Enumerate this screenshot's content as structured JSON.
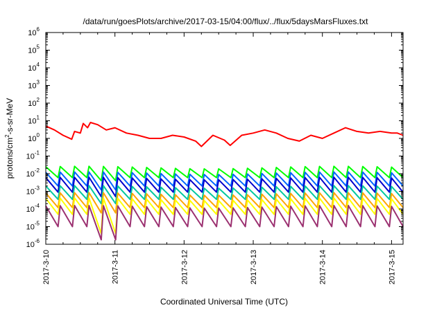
{
  "chart_data": {
    "type": "line",
    "title": "/data/run/goesPlots/archive/2017-03-15/04:00/flux/../flux/5daysMarsFluxes.txt",
    "xlabel": "Coordinated Universal Time (UTC)",
    "ylabel": {
      "pre": "protons/cm",
      "sup": "2",
      "post": "-s-sr-MeV"
    },
    "yscale": "log",
    "ylim_exp": [
      -6,
      6
    ],
    "y_ticks": [
      {
        "base": "10",
        "exp": "-6"
      },
      {
        "base": "10",
        "exp": "-5"
      },
      {
        "base": "10",
        "exp": "-4"
      },
      {
        "base": "10",
        "exp": "-3"
      },
      {
        "base": "10",
        "exp": "-2"
      },
      {
        "base": "10",
        "exp": "-1"
      },
      {
        "base": "10",
        "exp": "0"
      },
      {
        "base": "10",
        "exp": "1"
      },
      {
        "base": "10",
        "exp": "2"
      },
      {
        "base": "10",
        "exp": "3"
      },
      {
        "base": "10",
        "exp": "4"
      },
      {
        "base": "10",
        "exp": "5"
      },
      {
        "base": "10",
        "exp": "6"
      }
    ],
    "xlim": [
      "2017-03-10 00:00",
      "2017-03-15 04:00"
    ],
    "x_ticks": [
      "2017-3-10",
      "2017-3-11",
      "2017-3-12",
      "2017-3-13",
      "2017-3-14",
      "2017-3-15"
    ],
    "grid": false,
    "legend": false,
    "series": [
      {
        "color": "#ff0000",
        "values": [
          [
            "2017-03-10 00:00",
            5.0
          ],
          [
            "2017-03-10 03:00",
            3.0
          ],
          [
            "2017-03-10 06:00",
            1.5
          ],
          [
            "2017-03-10 09:00",
            0.9
          ],
          [
            "2017-03-10 10:00",
            2.5
          ],
          [
            "2017-03-10 12:00",
            2.0
          ],
          [
            "2017-03-10 13:00",
            7.0
          ],
          [
            "2017-03-10 14:30",
            4.0
          ],
          [
            "2017-03-10 15:30",
            8.0
          ],
          [
            "2017-03-10 18:00",
            6.0
          ],
          [
            "2017-03-10 21:00",
            3.0
          ],
          [
            "2017-03-11 00:00",
            4.0
          ],
          [
            "2017-03-11 04:00",
            2.0
          ],
          [
            "2017-03-11 08:00",
            1.5
          ],
          [
            "2017-03-11 12:00",
            1.0
          ],
          [
            "2017-03-11 16:00",
            1.0
          ],
          [
            "2017-03-11 20:00",
            1.5
          ],
          [
            "2017-03-12 00:00",
            1.2
          ],
          [
            "2017-03-12 04:00",
            0.7
          ],
          [
            "2017-03-12 06:00",
            0.35
          ],
          [
            "2017-03-12 10:00",
            1.5
          ],
          [
            "2017-03-12 14:00",
            0.8
          ],
          [
            "2017-03-12 16:00",
            0.4
          ],
          [
            "2017-03-12 20:00",
            1.5
          ],
          [
            "2017-03-13 00:00",
            2.0
          ],
          [
            "2017-03-13 04:00",
            3.0
          ],
          [
            "2017-03-13 08:00",
            2.0
          ],
          [
            "2017-03-13 12:00",
            1.0
          ],
          [
            "2017-03-13 16:00",
            0.7
          ],
          [
            "2017-03-13 20:00",
            1.5
          ],
          [
            "2017-03-14 00:00",
            1.0
          ],
          [
            "2017-03-14 04:00",
            2.0
          ],
          [
            "2017-03-14 08:00",
            4.0
          ],
          [
            "2017-03-14 12:00",
            2.5
          ],
          [
            "2017-03-14 16:00",
            2.0
          ],
          [
            "2017-03-14 20:00",
            2.5
          ],
          [
            "2017-03-15 00:00",
            2.0
          ],
          [
            "2017-03-15 02:00",
            2.0
          ],
          [
            "2017-03-15 04:00",
            1.5
          ]
        ]
      },
      {
        "color": "#00ff00",
        "start": 0.025,
        "min": 0.006,
        "min_dip": 0.004
      },
      {
        "color": "#0066ff",
        "start": 0.012,
        "min": 0.002,
        "min_dip": 0.0012
      },
      {
        "color": "#0000cc",
        "start": 0.006,
        "min": 0.0009,
        "min_dip": 0.0005
      },
      {
        "color": "#00c8a0",
        "start": 0.002,
        "min": 0.00035,
        "min_dip": 0.0002
      },
      {
        "color": "#ffa500",
        "start": 0.0008,
        "min": 0.00012,
        "min_dip": 6e-05
      },
      {
        "color": "#ffff00",
        "start": 0.0004,
        "min": 5e-05,
        "min_dip": 4e-06
      },
      {
        "color": "#9b3070",
        "start": 0.00015,
        "min": 1e-05,
        "min_dip": 1.8e-06
      }
    ]
  }
}
